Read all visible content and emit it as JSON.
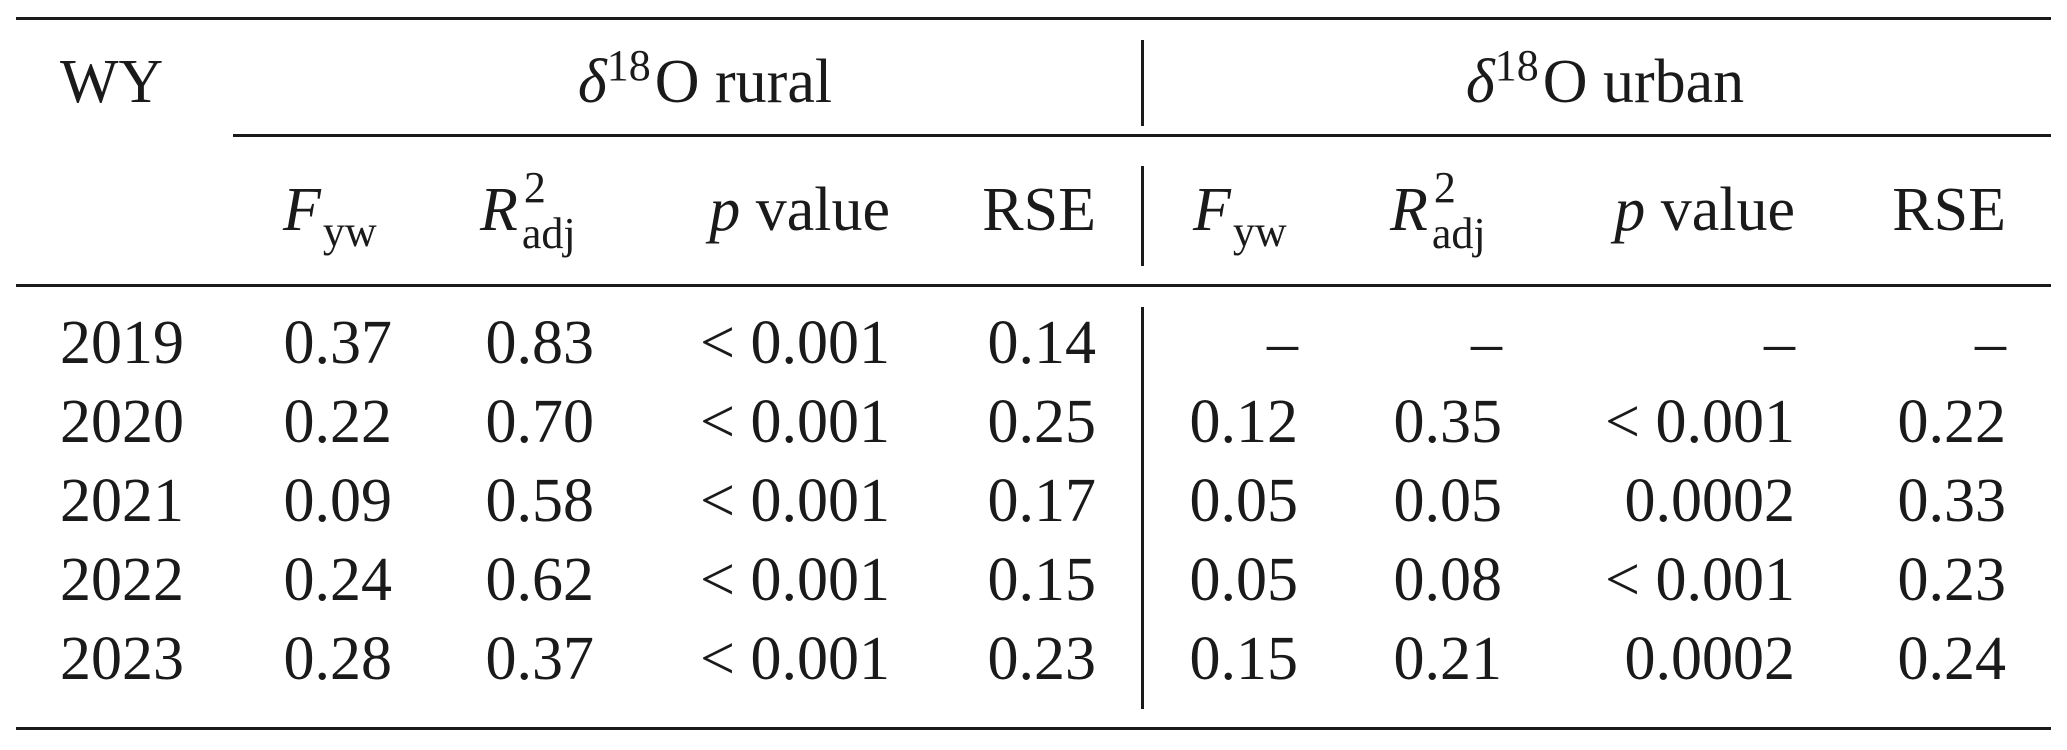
{
  "table": {
    "stub_header": "WY",
    "groups": [
      {
        "delta": "δ",
        "mass": "18",
        "element": "O",
        "label": "rural"
      },
      {
        "delta": "δ",
        "mass": "18",
        "element": "O",
        "label": "urban"
      }
    ],
    "subheaders": {
      "fyw": {
        "base": "F",
        "sub": "yw"
      },
      "r2": {
        "base": "R",
        "sup": "2",
        "sub": "adj"
      },
      "pval": {
        "p": "p",
        "rest": "value"
      },
      "rse": "RSE"
    },
    "rows": [
      {
        "wy": "2019",
        "rural": [
          "0.37",
          "0.83",
          "< 0.001",
          "0.14"
        ],
        "urban": [
          "–",
          "–",
          "–",
          "–"
        ]
      },
      {
        "wy": "2020",
        "rural": [
          "0.22",
          "0.70",
          "< 0.001",
          "0.25"
        ],
        "urban": [
          "0.12",
          "0.35",
          "< 0.001",
          "0.22"
        ]
      },
      {
        "wy": "2021",
        "rural": [
          "0.09",
          "0.58",
          "< 0.001",
          "0.17"
        ],
        "urban": [
          "0.05",
          "0.05",
          "0.0002",
          "0.33"
        ]
      },
      {
        "wy": "2022",
        "rural": [
          "0.24",
          "0.62",
          "< 0.001",
          "0.15"
        ],
        "urban": [
          "0.05",
          "0.08",
          "< 0.001",
          "0.23"
        ]
      },
      {
        "wy": "2023",
        "rural": [
          "0.28",
          "0.37",
          "< 0.001",
          "0.23"
        ],
        "urban": [
          "0.15",
          "0.21",
          "0.0002",
          "0.24"
        ]
      }
    ]
  }
}
